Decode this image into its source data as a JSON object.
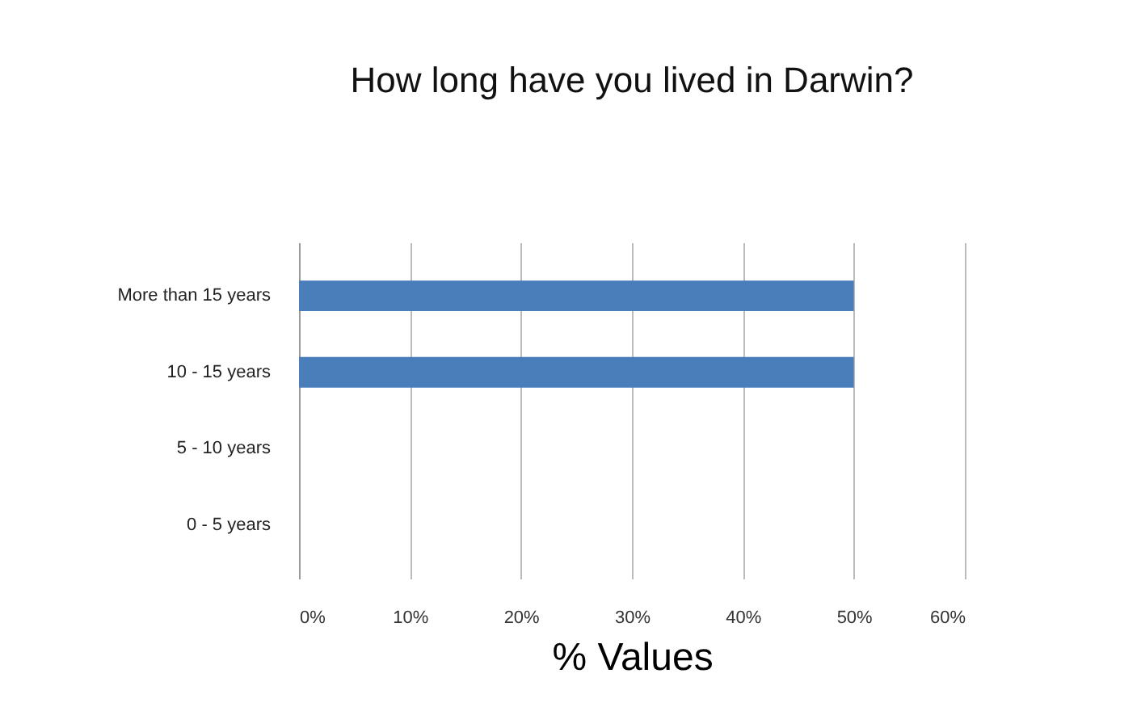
{
  "chart_data": {
    "type": "bar",
    "orientation": "horizontal",
    "title": "How long have you lived in Darwin?",
    "xlabel": "% Values",
    "categories": [
      "More than 15 years",
      "10 - 15 years",
      "5 - 10 years",
      "0 - 5 years"
    ],
    "values": [
      50,
      50,
      0,
      0
    ],
    "color": "#4a7ebb",
    "xlim": [
      0,
      60
    ],
    "xticks": [
      {
        "value": 0,
        "label": "0%"
      },
      {
        "value": 10,
        "label": "10%"
      },
      {
        "value": 20,
        "label": "20%"
      },
      {
        "value": 30,
        "label": "30%"
      },
      {
        "value": 40,
        "label": "40%"
      },
      {
        "value": 50,
        "label": "50%"
      },
      {
        "value": 60,
        "label": "60%"
      }
    ],
    "grid": "x"
  }
}
